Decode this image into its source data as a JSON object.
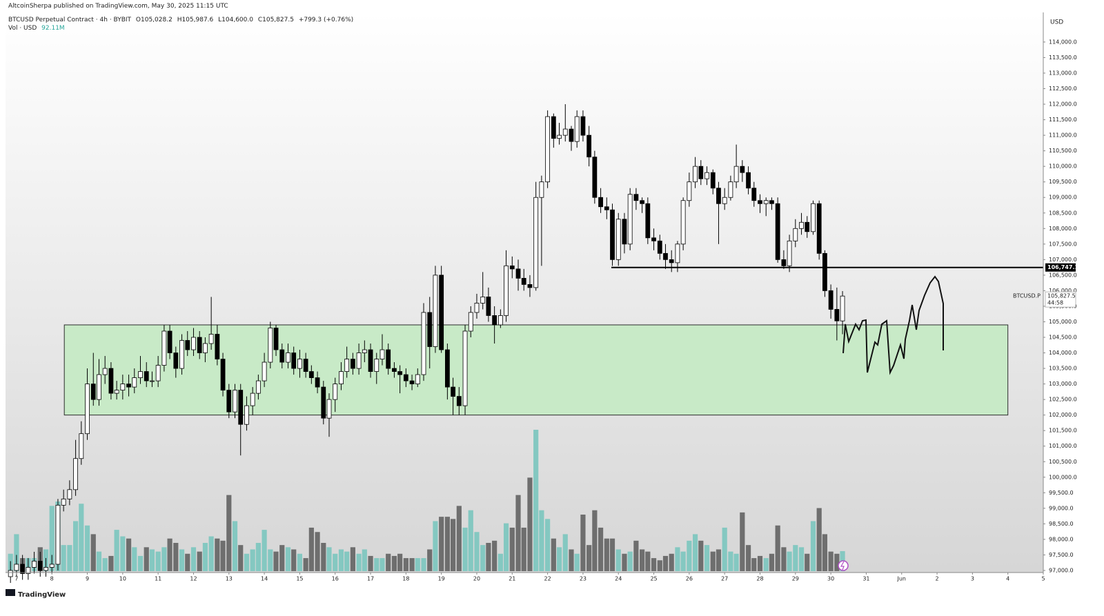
{
  "header": {
    "publisher": "AltcoinSherpa published on TradingView.com, May 30, 2025 11:15 UTC",
    "symbol": "BTCUSD Perpetual Contract · 4h · BYBIT",
    "open": "O105,028.2",
    "high": "H105,987.6",
    "low": "L104,600.0",
    "close": "C105,827.5",
    "change": "+799.3 (+0.76%)",
    "volume_title": "Vol · USD",
    "volume_value": "92.11M",
    "currency": "USD"
  },
  "footer": {
    "brand": "TradingView"
  },
  "chart_data": {
    "type": "candlestick",
    "xlim": [
      6.69,
      36
    ],
    "ylim": [
      96933,
      114952
    ],
    "xticks": [
      7,
      8,
      9,
      10,
      11,
      12,
      13,
      14,
      15,
      16,
      17,
      18,
      19,
      20,
      21,
      22,
      23,
      24,
      25,
      26,
      27,
      28,
      29,
      30,
      31,
      {
        "value": 32,
        "label": "Jun"
      },
      {
        "value": 33,
        "label": "2"
      },
      {
        "value": 34,
        "label": "3"
      },
      {
        "value": 35,
        "label": "4"
      },
      {
        "value": 36,
        "label": "5"
      }
    ],
    "yticks": [
      {
        "value": 97000,
        "label": "97,000.0"
      },
      {
        "value": 97500,
        "label": "97,500.0"
      },
      {
        "value": 98000,
        "label": "98,000.0"
      },
      {
        "value": 98500,
        "label": "98,500.0"
      },
      {
        "value": 99000,
        "label": "99,000.0"
      },
      {
        "value": 99500,
        "label": "99,500.0"
      },
      {
        "value": 100000,
        "label": "100,000.0"
      },
      {
        "value": 100500,
        "label": "100,500.0"
      },
      {
        "value": 101000,
        "label": "101,000.0"
      },
      {
        "value": 101500,
        "label": "101,500.0"
      },
      {
        "value": 102000,
        "label": "102,000.0"
      },
      {
        "value": 102500,
        "label": "102,500.0"
      },
      {
        "value": 103000,
        "label": "103,000.0"
      },
      {
        "value": 103500,
        "label": "103,500.0"
      },
      {
        "value": 104000,
        "label": "104,000.0"
      },
      {
        "value": 104500,
        "label": "104,500.0"
      },
      {
        "value": 105000,
        "label": "105,000.0"
      },
      {
        "value": 105500,
        "label": "105,500.0"
      },
      {
        "value": 106000,
        "label": "106,000.0"
      },
      {
        "value": 106500,
        "label": "106,500.0"
      },
      {
        "value": 107000,
        "label": "107,000.0"
      },
      {
        "value": 107500,
        "label": "107,500.0"
      },
      {
        "value": 108000,
        "label": "108,000.0"
      },
      {
        "value": 108500,
        "label": "108,500.0"
      },
      {
        "value": 109000,
        "label": "109,000.0"
      },
      {
        "value": 109500,
        "label": "109,500.0"
      },
      {
        "value": 110000,
        "label": "110,000.0"
      },
      {
        "value": 110500,
        "label": "110,500.0"
      },
      {
        "value": 111000,
        "label": "111,000.0"
      },
      {
        "value": 111500,
        "label": "111,500.0"
      },
      {
        "value": 112000,
        "label": "112,000.0"
      },
      {
        "value": 112500,
        "label": "112,500.0"
      },
      {
        "value": 113000,
        "label": "113,000.0"
      },
      {
        "value": 113500,
        "label": "113,500.0"
      },
      {
        "value": 114000,
        "label": "114,000.0"
      }
    ],
    "up_color": "#ffffff",
    "down_color": "#000000",
    "wick_color": "#000000",
    "volume_up_color": "#84c8c1",
    "volume_down_color": "#6e6e6e",
    "x": [
      6.83,
      7,
      7.17,
      7.33,
      7.5,
      7.67,
      7.83,
      8,
      8.17,
      8.33,
      8.5,
      8.67,
      8.83,
      9,
      9.17,
      9.33,
      9.5,
      9.67,
      9.83,
      10,
      10.17,
      10.33,
      10.5,
      10.67,
      10.83,
      11,
      11.17,
      11.33,
      11.5,
      11.67,
      11.83,
      12,
      12.17,
      12.33,
      12.5,
      12.67,
      12.83,
      13,
      13.17,
      13.33,
      13.5,
      13.67,
      13.83,
      14,
      14.17,
      14.33,
      14.5,
      14.67,
      14.83,
      15,
      15.17,
      15.33,
      15.5,
      15.67,
      15.83,
      16,
      16.17,
      16.33,
      16.5,
      16.67,
      16.83,
      17,
      17.17,
      17.33,
      17.5,
      17.67,
      17.83,
      18,
      18.17,
      18.33,
      18.5,
      18.67,
      18.83,
      19,
      19.17,
      19.33,
      19.5,
      19.67,
      19.83,
      20,
      20.17,
      20.33,
      20.5,
      20.67,
      20.83,
      21,
      21.17,
      21.33,
      21.5,
      21.67,
      21.83,
      22,
      22.17,
      22.33,
      22.5,
      22.67,
      22.83,
      23,
      23.17,
      23.33,
      23.5,
      23.67,
      23.83,
      24,
      24.17,
      24.33,
      24.5,
      24.67,
      24.83,
      25,
      25.17,
      25.33,
      25.5,
      25.67,
      25.83,
      26,
      26.17,
      26.33,
      26.5,
      26.67,
      26.83,
      27,
      27.17,
      27.33,
      27.5,
      27.67,
      27.83,
      28,
      28.17,
      28.33,
      28.5,
      28.67,
      28.83,
      29,
      29.17,
      29.33,
      29.5,
      29.67,
      29.83,
      30,
      30.17,
      30.33
    ],
    "open": [
      96800,
      97000,
      97200,
      96900,
      97100,
      97300,
      97000,
      97100,
      97200,
      99100,
      99300,
      99600,
      100600,
      101400,
      103000,
      102500,
      103300,
      103500,
      102700,
      102800,
      103000,
      102900,
      103200,
      103400,
      103100,
      103100,
      103600,
      104700,
      104000,
      103500,
      104400,
      104100,
      104500,
      104000,
      104300,
      104600,
      103800,
      102800,
      102100,
      102800,
      101700,
      102300,
      102700,
      103100,
      103700,
      104800,
      104100,
      103700,
      104000,
      103500,
      103800,
      103400,
      103200,
      102900,
      101900,
      102500,
      103000,
      103400,
      103800,
      103500,
      104000,
      104100,
      103400,
      103800,
      104100,
      103500,
      103400,
      103300,
      103100,
      103000,
      103300,
      105300,
      104200,
      106500,
      104100,
      102900,
      102600,
      102300,
      104700,
      105300,
      105600,
      105800,
      105200,
      104900,
      105200,
      106800,
      106700,
      106400,
      106200,
      106100,
      109000,
      109500,
      111600,
      110900,
      111000,
      111200,
      110800,
      111600,
      111000,
      110300,
      109000,
      108700,
      108600,
      107000,
      108300,
      107500,
      109100,
      108900,
      108800,
      107700,
      107600,
      107200,
      107000,
      106900,
      107500,
      108900,
      109500,
      110000,
      109600,
      109800,
      109300,
      108800,
      109000,
      109500,
      110000,
      109800,
      109300,
      108900,
      108800,
      108900,
      108800,
      107000,
      106800,
      107600,
      108000,
      108200,
      107900,
      108800,
      107200,
      106000,
      105400,
      105028.2
    ],
    "high": [
      97300,
      97500,
      97500,
      97400,
      97600,
      97600,
      97400,
      97500,
      99300,
      99600,
      99900,
      101200,
      101800,
      103500,
      104000,
      103800,
      103900,
      103700,
      103100,
      103300,
      103300,
      103500,
      103900,
      103700,
      103400,
      103900,
      104900,
      104900,
      104200,
      104600,
      104700,
      104800,
      104700,
      104500,
      105800,
      104900,
      104000,
      103000,
      103000,
      103000,
      102600,
      102900,
      103300,
      104000,
      105000,
      104900,
      104300,
      104300,
      104200,
      104100,
      104000,
      103600,
      103400,
      103100,
      102700,
      103200,
      103700,
      104200,
      104000,
      104300,
      104400,
      104300,
      104000,
      104600,
      104300,
      103700,
      103600,
      103500,
      103300,
      103500,
      105600,
      105800,
      106800,
      106800,
      104300,
      103200,
      102900,
      104900,
      105500,
      105900,
      106600,
      106100,
      105500,
      105400,
      107300,
      107100,
      107000,
      106700,
      106500,
      109500,
      109700,
      111800,
      111700,
      111400,
      112000,
      111300,
      111800,
      111800,
      111300,
      110500,
      109300,
      109000,
      108800,
      108500,
      108500,
      109300,
      109300,
      109000,
      109000,
      108000,
      107800,
      107500,
      107300,
      107600,
      109000,
      109800,
      110300,
      110200,
      110000,
      109900,
      109500,
      109300,
      109700,
      110700,
      110200,
      110000,
      109500,
      109100,
      109000,
      109000,
      109000,
      107300,
      107800,
      108300,
      108500,
      108400,
      108900,
      108900,
      107300,
      106200,
      106100,
      105987.6
    ],
    "low": [
      96600,
      96800,
      96700,
      96700,
      96900,
      96800,
      96800,
      96900,
      97000,
      98900,
      99100,
      99400,
      100400,
      101200,
      102300,
      102300,
      103000,
      102500,
      102500,
      102500,
      102600,
      102700,
      103000,
      102900,
      102900,
      102900,
      103400,
      103800,
      103200,
      103300,
      103900,
      103900,
      103800,
      103700,
      104100,
      103600,
      102600,
      101900,
      101900,
      100700,
      101500,
      102000,
      102500,
      102900,
      103500,
      103900,
      103500,
      103500,
      103300,
      103200,
      103200,
      103000,
      102700,
      101700,
      101300,
      102100,
      102800,
      103200,
      103300,
      103300,
      103700,
      103200,
      103000,
      103600,
      103300,
      103200,
      102700,
      102900,
      102800,
      102900,
      103100,
      103500,
      104000,
      104000,
      102500,
      102000,
      102000,
      102000,
      104500,
      105100,
      105400,
      105000,
      104300,
      104800,
      105000,
      106400,
      106000,
      106000,
      105800,
      106000,
      106800,
      109300,
      110600,
      110700,
      110800,
      110500,
      110600,
      110800,
      110000,
      108800,
      108500,
      108300,
      106800,
      106800,
      107200,
      107300,
      108600,
      108500,
      107500,
      107300,
      107000,
      106700,
      106600,
      106600,
      107300,
      108700,
      109300,
      109400,
      109400,
      109100,
      107500,
      108600,
      108900,
      109300,
      109500,
      109100,
      108700,
      108500,
      108400,
      108600,
      106900,
      106700,
      106600,
      107400,
      107800,
      107700,
      107800,
      107000,
      105800,
      105100,
      104400,
      104600.0
    ],
    "close": [
      97000,
      97200,
      96900,
      97100,
      97300,
      97000,
      97100,
      97200,
      99100,
      99300,
      99600,
      100600,
      101400,
      103000,
      102500,
      103300,
      103500,
      102700,
      102800,
      103000,
      102900,
      103200,
      103400,
      103100,
      103100,
      103600,
      104700,
      104000,
      103500,
      104400,
      104100,
      104500,
      104000,
      104300,
      104600,
      103800,
      102800,
      102100,
      102800,
      101700,
      102300,
      102700,
      103100,
      103700,
      104800,
      104100,
      103700,
      104000,
      103500,
      103800,
      103400,
      103200,
      102900,
      101900,
      102500,
      103000,
      103400,
      103800,
      103500,
      104000,
      104100,
      103400,
      103800,
      104100,
      103500,
      103400,
      103300,
      103100,
      103000,
      103300,
      105300,
      104200,
      106500,
      104100,
      102900,
      102600,
      102300,
      104700,
      105300,
      105600,
      105800,
      105200,
      104900,
      105200,
      106800,
      106700,
      106400,
      106200,
      106100,
      109000,
      109500,
      111600,
      110900,
      111000,
      111200,
      110800,
      111600,
      111000,
      110300,
      109000,
      108700,
      108600,
      107000,
      108300,
      107500,
      109100,
      108900,
      108800,
      107700,
      107600,
      107200,
      107000,
      106900,
      107500,
      108900,
      109500,
      110000,
      109600,
      109800,
      109300,
      108800,
      109000,
      109500,
      110000,
      109800,
      109300,
      108900,
      108800,
      108900,
      108800,
      107000,
      106800,
      107600,
      108000,
      108200,
      107900,
      108800,
      107200,
      106000,
      105400,
      105028.2,
      105827.5
    ],
    "volume": [
      80,
      170,
      60,
      60,
      60,
      110,
      100,
      300,
      320,
      120,
      120,
      230,
      310,
      210,
      170,
      90,
      60,
      70,
      190,
      160,
      150,
      110,
      70,
      110,
      100,
      90,
      110,
      150,
      130,
      100,
      80,
      110,
      90,
      130,
      160,
      150,
      140,
      350,
      230,
      120,
      80,
      100,
      130,
      190,
      100,
      90,
      120,
      110,
      100,
      80,
      60,
      200,
      180,
      130,
      110,
      80,
      100,
      90,
      110,
      80,
      100,
      70,
      60,
      60,
      80,
      70,
      80,
      60,
      60,
      60,
      60,
      100,
      230,
      250,
      250,
      240,
      300,
      200,
      280,
      180,
      120,
      130,
      140,
      80,
      220,
      200,
      350,
      200,
      430,
      650,
      280,
      240,
      150,
      110,
      170,
      100,
      80,
      260,
      120,
      280,
      200,
      150,
      150,
      100,
      80,
      90,
      140,
      100,
      90,
      60,
      50,
      70,
      80,
      110,
      90,
      140,
      170,
      140,
      120,
      90,
      100,
      200,
      90,
      80,
      270,
      120,
      60,
      70,
      60,
      80,
      210,
      110,
      90,
      120,
      110,
      80,
      230,
      290,
      170,
      90,
      80,
      92.11
    ],
    "zone": {
      "x": [
        8.35,
        35
      ],
      "y": [
        102000,
        104900
      ],
      "color": "#c8eac7",
      "border": "#2b2b2b"
    },
    "hline": {
      "value": 106747.1,
      "label": "106,747.1",
      "x_start": 23.8
    },
    "last_price": {
      "value": 105827.5,
      "label": "105,827.5",
      "countdown": "44:58",
      "symbol": "BTCUSD.P"
    }
  }
}
